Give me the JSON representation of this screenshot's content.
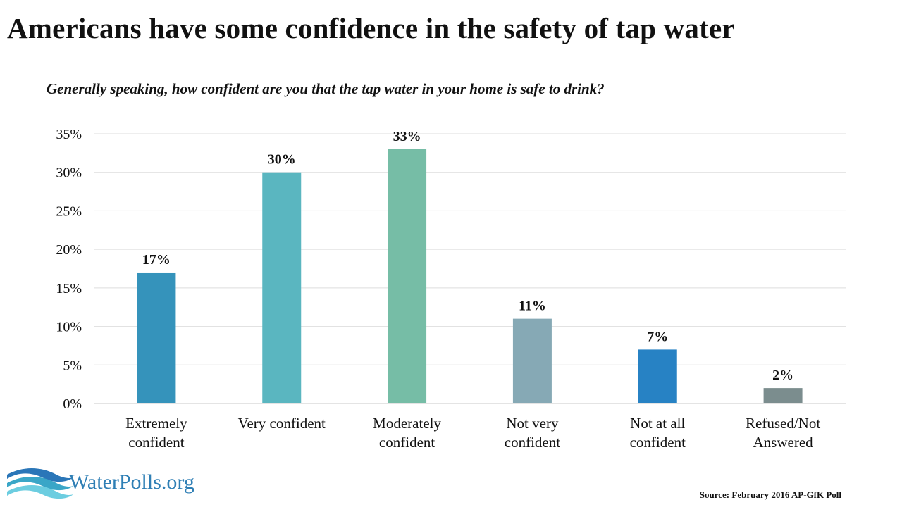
{
  "title": "Americans have some confidence in the safety of  tap water",
  "subtitle": "Generally speaking, how confident are you that the tap water in your home is safe to drink?",
  "source": "Source: February 2016 AP-GfK Poll",
  "logo": {
    "text": "WaterPolls.org",
    "wave_colors": [
      "#2a76b8",
      "#3aa6c7",
      "#6ccde0"
    ]
  },
  "chart_data": {
    "type": "bar",
    "categories": [
      [
        "Extremely",
        "confident"
      ],
      [
        "Very confident"
      ],
      [
        "Moderately",
        "confident"
      ],
      [
        "Not very",
        "confident"
      ],
      [
        "Not at all",
        "confident"
      ],
      [
        "Refused/Not",
        "Answered"
      ]
    ],
    "values": [
      17,
      30,
      33,
      11,
      7,
      2
    ],
    "data_labels": [
      "17%",
      "30%",
      "33%",
      "11%",
      "7%",
      "2%"
    ],
    "bar_colors": [
      "#3593bb",
      "#5ab6c0",
      "#76bda6",
      "#86a9b5",
      "#2782c4",
      "#7b8d8e"
    ],
    "y_ticks": [
      "0%",
      "5%",
      "10%",
      "15%",
      "20%",
      "25%",
      "30%",
      "35%"
    ],
    "ylim": [
      0,
      35
    ],
    "grid": true,
    "legend": "none"
  }
}
